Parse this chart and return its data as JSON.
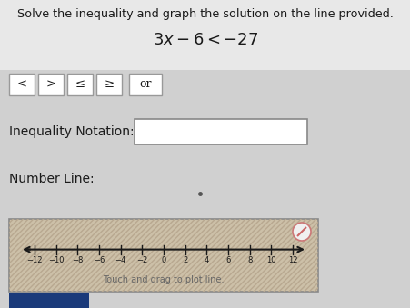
{
  "title": "Solve the inequality and graph the solution on the line provided.",
  "equation": "$3x - 6 < -27$",
  "buttons": [
    "<",
    ">",
    "≤",
    "≥",
    "or"
  ],
  "inequality_label": "Inequality Notation:",
  "number_line_label": "Number Line:",
  "number_line_caption": "Touch and drag to plot line.",
  "tick_values": [
    -12,
    -10,
    -8,
    -6,
    -4,
    -2,
    0,
    2,
    4,
    6,
    8,
    10,
    12
  ],
  "top_bg": "#e8e8e8",
  "panel_bg": "#d0d0d0",
  "white": "#ffffff",
  "text_color": "#1a1a1a",
  "nl_bg": "#ccc0a8",
  "nl_hatch_color": "#b8a890",
  "nl_border": "#888888",
  "arrow_color": "#1a1a1a",
  "button_border": "#999999",
  "ineq_box_border": "#888888",
  "caption_color": "#666666",
  "icon_color": "#cc4444",
  "submit_color": "#1a3a7a",
  "dot_color": "#555555"
}
